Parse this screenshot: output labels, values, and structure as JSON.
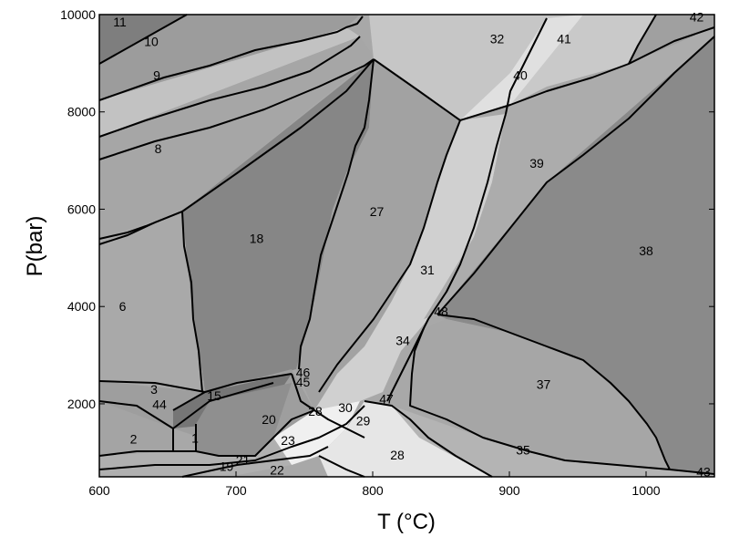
{
  "chart_data": {
    "type": "pseudosection",
    "xlabel": "T (°C)",
    "ylabel": "P(bar)",
    "xlim": [
      600,
      1050
    ],
    "ylim": [
      500,
      10000
    ],
    "xticks": [
      "600",
      "700",
      "800",
      "900",
      "1000"
    ],
    "yticks": [
      "2000",
      "4000",
      "6000",
      "8000",
      "10000"
    ],
    "grid": false,
    "field_labels": [
      {
        "label": "11",
        "x": 615,
        "y": 9850
      },
      {
        "label": "10",
        "x": 638,
        "y": 9450
      },
      {
        "label": "9",
        "x": 642,
        "y": 8750
      },
      {
        "label": "8",
        "x": 643,
        "y": 7250
      },
      {
        "label": "6",
        "x": 617,
        "y": 4000
      },
      {
        "label": "18",
        "x": 715,
        "y": 5400
      },
      {
        "label": "27",
        "x": 803,
        "y": 5950
      },
      {
        "label": "31",
        "x": 840,
        "y": 4750
      },
      {
        "label": "32",
        "x": 891,
        "y": 9500
      },
      {
        "label": "40",
        "x": 908,
        "y": 8750
      },
      {
        "label": "41",
        "x": 940,
        "y": 9500
      },
      {
        "label": "42",
        "x": 1037,
        "y": 9950
      },
      {
        "label": "39",
        "x": 920,
        "y": 6950
      },
      {
        "label": "38",
        "x": 1000,
        "y": 5150
      },
      {
        "label": "48",
        "x": 850,
        "y": 3900
      },
      {
        "label": "34",
        "x": 822,
        "y": 3300
      },
      {
        "label": "37",
        "x": 925,
        "y": 2400
      },
      {
        "label": "46",
        "x": 749,
        "y": 2650
      },
      {
        "label": "45",
        "x": 749,
        "y": 2450
      },
      {
        "label": "3",
        "x": 640,
        "y": 2300
      },
      {
        "label": "44",
        "x": 644,
        "y": 1990
      },
      {
        "label": "15",
        "x": 684,
        "y": 2170
      },
      {
        "label": "20",
        "x": 724,
        "y": 1680
      },
      {
        "label": "28",
        "x": 758,
        "y": 1850
      },
      {
        "label": "30",
        "x": 780,
        "y": 1920
      },
      {
        "label": "47",
        "x": 810,
        "y": 2100
      },
      {
        "label": "29",
        "x": 793,
        "y": 1650
      },
      {
        "label": "2",
        "x": 625,
        "y": 1280
      },
      {
        "label": "1",
        "x": 670,
        "y": 1300
      },
      {
        "label": "23",
        "x": 738,
        "y": 1250
      },
      {
        "label": "28",
        "x": 818,
        "y": 950
      },
      {
        "label": "35",
        "x": 910,
        "y": 1050
      },
      {
        "label": "43",
        "x": 1042,
        "y": 600
      },
      {
        "label": "21",
        "x": 705,
        "y": 850
      },
      {
        "label": "19",
        "x": 693,
        "y": 720
      },
      {
        "label": "22",
        "x": 730,
        "y": 640
      }
    ]
  }
}
